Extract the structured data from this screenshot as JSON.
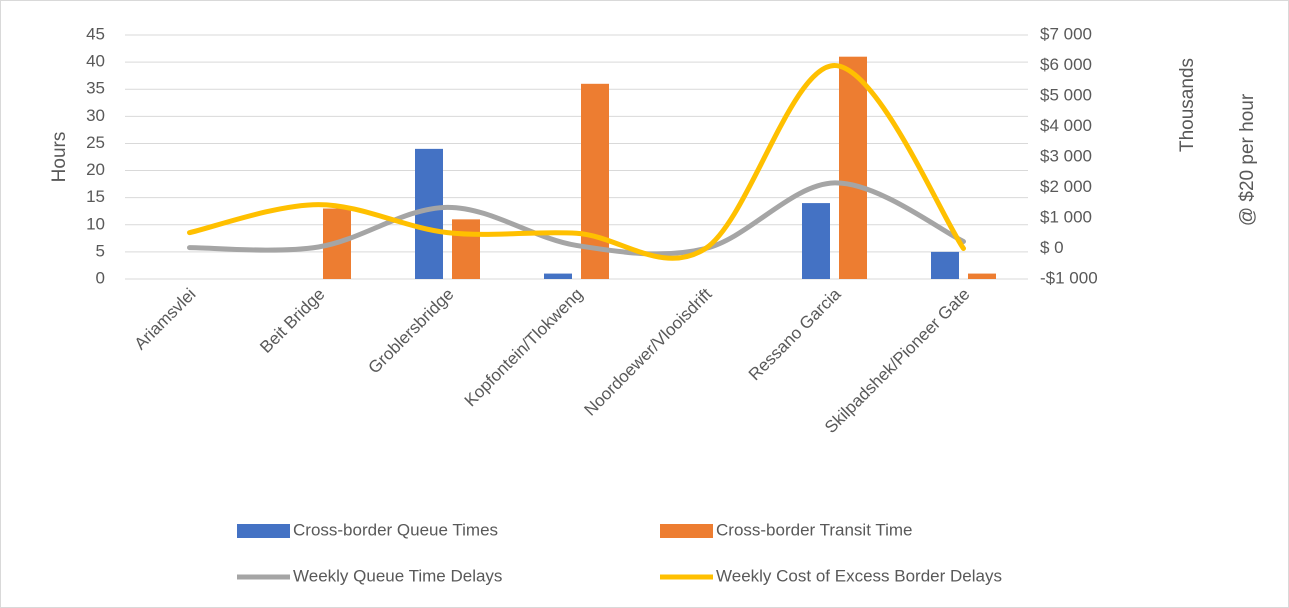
{
  "chart_data": {
    "type": "bar-line-combo",
    "y_title": "Hours",
    "y2_units": "Thousands",
    "y2_title": "@ $20 per hour",
    "categories": [
      "Ariamsvlei",
      "Beit Bridge",
      "Groblersbridge",
      "Kopfontein/Tlokweng",
      "Noordoewer/Vlooisdrift",
      "Ressano Garcia",
      "Skilpadshek/Pioneer Gate"
    ],
    "series": [
      {
        "name": "Cross-border Queue Times",
        "type": "bar",
        "color": "#4472c4",
        "values": [
          0,
          0,
          24,
          1,
          0,
          14,
          5
        ]
      },
      {
        "name": "Cross-border Transit Time",
        "type": "bar",
        "color": "#ed7d31",
        "values": [
          0,
          13,
          11,
          36,
          0,
          41,
          1
        ]
      },
      {
        "name": "Weekly Queue Time Delays",
        "type": "line",
        "axis": "y2",
        "color": "#a5a5a5",
        "values": [
          30,
          50,
          1350,
          100,
          0,
          2150,
          230
        ]
      },
      {
        "name": "Weekly Cost of Excess Border Delays",
        "type": "line",
        "axis": "y2",
        "color": "#ffc000",
        "values": [
          520,
          1440,
          520,
          500,
          0,
          6000,
          0
        ]
      }
    ],
    "ylim": [
      0,
      45
    ],
    "yticks": [
      0,
      5,
      10,
      15,
      20,
      25,
      30,
      35,
      40,
      45
    ],
    "y2lim": [
      -1000,
      7000
    ],
    "y2ticks": [
      {
        "value": -1000,
        "label": "-$1 000"
      },
      {
        "value": 0,
        "label": "$ 0"
      },
      {
        "value": 1000,
        "label": "$1 000"
      },
      {
        "value": 2000,
        "label": "$2 000"
      },
      {
        "value": 3000,
        "label": "$3 000"
      },
      {
        "value": 4000,
        "label": "$4 000"
      },
      {
        "value": 5000,
        "label": "$5 000"
      },
      {
        "value": 6000,
        "label": "$6 000"
      },
      {
        "value": 7000,
        "label": "$7 000"
      }
    ],
    "grid": true
  }
}
